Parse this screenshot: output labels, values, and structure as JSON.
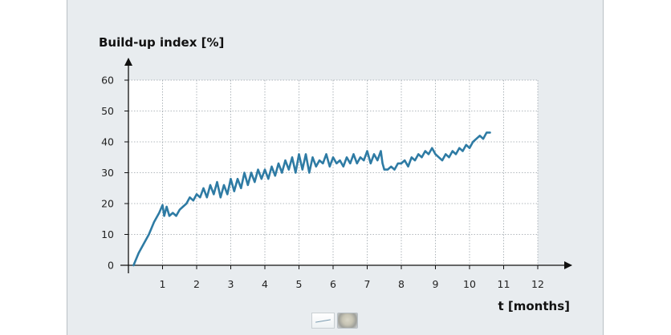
{
  "chart_data": {
    "type": "line",
    "ylabel": "Build-up index [%]",
    "xlabel": "t [months]",
    "xlim": [
      0,
      12
    ],
    "ylim": [
      0,
      60
    ],
    "x_ticks": [
      1,
      2,
      3,
      4,
      5,
      6,
      7,
      8,
      9,
      10,
      11,
      12
    ],
    "y_ticks": [
      0,
      10,
      20,
      30,
      40,
      50,
      60
    ],
    "grid": true,
    "line_color": "#2e7ba4",
    "x": [
      0.15,
      0.3,
      0.45,
      0.6,
      0.75,
      0.9,
      1.0,
      1.05,
      1.12,
      1.2,
      1.3,
      1.4,
      1.5,
      1.6,
      1.7,
      1.8,
      1.9,
      2.0,
      2.1,
      2.2,
      2.3,
      2.4,
      2.5,
      2.6,
      2.7,
      2.8,
      2.9,
      3.0,
      3.1,
      3.2,
      3.3,
      3.4,
      3.5,
      3.6,
      3.7,
      3.8,
      3.9,
      4.0,
      4.1,
      4.2,
      4.3,
      4.4,
      4.5,
      4.6,
      4.7,
      4.8,
      4.9,
      5.0,
      5.1,
      5.2,
      5.3,
      5.4,
      5.5,
      5.6,
      5.7,
      5.8,
      5.9,
      6.0,
      6.1,
      6.2,
      6.3,
      6.4,
      6.5,
      6.6,
      6.7,
      6.8,
      6.9,
      7.0,
      7.1,
      7.2,
      7.3,
      7.4,
      7.45,
      7.5,
      7.6,
      7.7,
      7.8,
      7.9,
      8.0,
      8.1,
      8.2,
      8.3,
      8.4,
      8.5,
      8.6,
      8.7,
      8.8,
      8.9,
      9.0,
      9.1,
      9.2,
      9.3,
      9.4,
      9.5,
      9.6,
      9.7,
      9.8,
      9.9,
      10.0,
      10.1,
      10.2,
      10.3,
      10.4,
      10.5,
      10.6
    ],
    "y": [
      0,
      4,
      7,
      10,
      14,
      17,
      19.5,
      16,
      19,
      16,
      17,
      16,
      18,
      19,
      20,
      22,
      21,
      23,
      22,
      25,
      22,
      26,
      23,
      27,
      22,
      26,
      23,
      28,
      24,
      28,
      25,
      30,
      26,
      30,
      27,
      31,
      28,
      31,
      28,
      32,
      29,
      33,
      30,
      34,
      31,
      35,
      30,
      36,
      31,
      36,
      30,
      35,
      32,
      34,
      33,
      36,
      32,
      35,
      33,
      34,
      32,
      35,
      33,
      36,
      33,
      35,
      34,
      37,
      33,
      36,
      34,
      37,
      33,
      31,
      31,
      32,
      31,
      33,
      33,
      34,
      32,
      35,
      34,
      36,
      35,
      37,
      36,
      38,
      36,
      35,
      34,
      36,
      35,
      37,
      36,
      38,
      37,
      39,
      38,
      40,
      41,
      42,
      41,
      43,
      43
    ]
  }
}
